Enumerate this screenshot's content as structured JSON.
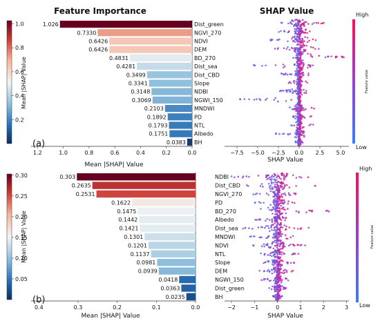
{
  "panel_a": {
    "left_title": "Feature Importance",
    "right_title": "SHAP Value",
    "label": "(a)"
  },
  "panel_b": {
    "label": "(b)"
  },
  "shap_colorbar": {
    "high_label": "High",
    "low_label": "Low",
    "title": "Feature value",
    "low_color": "#3b7bff",
    "high_color": "#ff0d57"
  },
  "chart_data": [
    {
      "id": "a-importance",
      "type": "bar",
      "orientation": "horizontal",
      "x_reversed": true,
      "categories": [
        "Dist_green",
        "NGVI_270",
        "NDVI",
        "DEM",
        "BD_270",
        "Dist_sea",
        "Dist_CBD",
        "Slope",
        "NDBI",
        "NGWI_150",
        "MNDWI",
        "PD",
        "NTL",
        "Albedo",
        "BH"
      ],
      "values": [
        1.026,
        0.733,
        0.6426,
        0.6426,
        0.4831,
        0.4281,
        0.3499,
        0.3341,
        0.3148,
        0.3069,
        0.2103,
        0.1892,
        0.1793,
        0.1751,
        0.0383
      ],
      "value_labels": [
        "1.026",
        "0.7330",
        "0.6426",
        "0.6426",
        "0.4831",
        "0.4281",
        "0.3499",
        "0.3341",
        "0.3148",
        "0.3069",
        "0.2103",
        "0.1892",
        "0.1793",
        "0.1751",
        "0.0383"
      ],
      "xlabel": "Mean |SHAP| Value",
      "xlim": [
        0,
        1.25
      ],
      "xticks": [
        "1.2",
        "1.0",
        "0.8",
        "0.6",
        "0.4",
        "0.2",
        "0.0"
      ],
      "xtick_values": [
        1.2,
        1.0,
        0.8,
        0.6,
        0.4,
        0.2,
        0.0
      ],
      "colorbar": {
        "label": "Mean |SHAP| Value",
        "range": [
          0,
          1.026
        ],
        "ticks": [
          "1.0",
          "0.8",
          "0.6",
          "0.4",
          "0.2"
        ],
        "tick_values": [
          1.0,
          0.8,
          0.6,
          0.4,
          0.2
        ]
      }
    },
    {
      "id": "a-beeswarm",
      "type": "scatter",
      "subtype": "shap-beeswarm",
      "features": [
        "Dist_green",
        "NGVI_270",
        "NDVI",
        "DEM",
        "BD_270",
        "Dist_sea",
        "Dist_CBD",
        "Slope",
        "NDBI",
        "NGWI_150",
        "MNDWI",
        "PD",
        "NTL",
        "Albedo",
        "BH"
      ],
      "ranges": [
        [
          -2.5,
          3.5
        ],
        [
          -2.5,
          1.5
        ],
        [
          -3.5,
          2
        ],
        [
          -3.5,
          2.5
        ],
        [
          -1.5,
          5.5
        ],
        [
          -6,
          2
        ],
        [
          -2.5,
          1.5
        ],
        [
          -1.5,
          1
        ],
        [
          -2.5,
          1
        ],
        [
          -8,
          0.5
        ],
        [
          -1.5,
          1.8
        ],
        [
          -0.8,
          1.5
        ],
        [
          -1,
          2.5
        ],
        [
          -3,
          1.5
        ],
        [
          -0.5,
          0.5
        ]
      ],
      "xlabel": "SHAP Value",
      "xlim": [
        -9,
        6
      ],
      "xticks": [
        "−7.5",
        "−5.0",
        "−2.5",
        "0.0",
        "2.5",
        "5.0"
      ],
      "xtick_values": [
        -7.5,
        -5.0,
        -2.5,
        0.0,
        2.5,
        5.0
      ]
    },
    {
      "id": "b-importance",
      "type": "bar",
      "orientation": "horizontal",
      "x_reversed": true,
      "categories": [
        "NDBI",
        "Dist_CBD",
        "NGVI_270",
        "PD",
        "BD_270",
        "Albedo",
        "Dist_sea",
        "MNDWI",
        "NDVI",
        "NTL",
        "Slope",
        "DEM",
        "NGWI_150",
        "Dist_green",
        "BH"
      ],
      "values": [
        0.303,
        0.2635,
        0.2531,
        0.1622,
        0.1475,
        0.1442,
        0.1421,
        0.1301,
        0.1201,
        0.1137,
        0.0981,
        0.0939,
        0.0418,
        0.0363,
        0.0235
      ],
      "value_labels": [
        "0.303",
        "0.2635",
        "0.2531",
        "0.1622",
        "0.1475",
        "0.1442",
        "0.1421",
        "0.1301",
        "0.1201",
        "0.1137",
        "0.0981",
        "0.0939",
        "0.0418",
        "0.0363",
        "0.0235"
      ],
      "xlabel": "Mean |SHAP| Value",
      "xlim": [
        0,
        0.42
      ],
      "xticks": [
        "0.4",
        "0.3",
        "0.2",
        "0.1",
        "0.0"
      ],
      "xtick_values": [
        0.4,
        0.3,
        0.2,
        0.1,
        0.0
      ],
      "colorbar": {
        "label": "Mean |SHAP| Value",
        "range": [
          0,
          0.303
        ],
        "ticks": [
          "0.30",
          "0.25",
          "0.20",
          "0.15",
          "0.10",
          "0.05"
        ],
        "tick_values": [
          0.3,
          0.25,
          0.2,
          0.15,
          0.1,
          0.05
        ]
      }
    },
    {
      "id": "b-beeswarm",
      "type": "scatter",
      "subtype": "shap-beeswarm",
      "features": [
        "NDBI",
        "Dist_CBD",
        "NGVI_270",
        "PD",
        "BD_270",
        "Albedo",
        "Dist_sea",
        "MNDWI",
        "NDVI",
        "NTL",
        "Slope",
        "DEM",
        "NGWI_150",
        "Dist_green",
        "BH"
      ],
      "ranges": [
        [
          -2,
          1.8
        ],
        [
          -1.5,
          1.8
        ],
        [
          -1.2,
          1
        ],
        [
          -1,
          0.8
        ],
        [
          -1,
          2.8
        ],
        [
          -1,
          0.7
        ],
        [
          -1.5,
          1.5
        ],
        [
          -1.2,
          0.7
        ],
        [
          -1.2,
          1.2
        ],
        [
          -0.8,
          1
        ],
        [
          -1,
          0.8
        ],
        [
          -0.8,
          0.8
        ],
        [
          -0.8,
          0.5
        ],
        [
          -0.5,
          0.5
        ],
        [
          -0.2,
          0.2
        ]
      ],
      "xlabel": "SHAP Value",
      "xlim": [
        -2.3,
        3.1
      ],
      "xticks": [
        "−2",
        "−1",
        "0",
        "1",
        "2",
        "3"
      ],
      "xtick_values": [
        -2,
        -1,
        0,
        1,
        2,
        3
      ]
    }
  ]
}
